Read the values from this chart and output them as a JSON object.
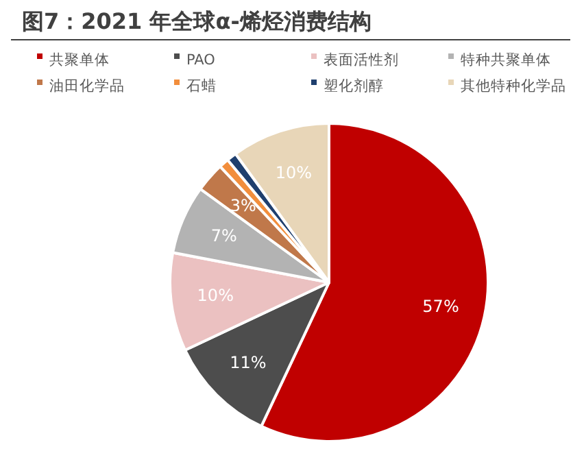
{
  "chart_data": {
    "type": "pie",
    "title": "图7：2021 年全球α-烯烃消费结构",
    "categories": [
      "共聚单体",
      "PAO",
      "表面活性剂",
      "特种共聚单体",
      "油田化学品",
      "石蜡",
      "塑化剂醇",
      "其他特种化学品"
    ],
    "values": [
      57,
      11,
      10,
      7,
      3,
      1,
      1,
      10
    ],
    "colors": [
      "#c00000",
      "#4d4d4d",
      "#ebc1c1",
      "#b3b3b3",
      "#c0784a",
      "#f28e3c",
      "#1f3f6e",
      "#e8d6b8"
    ],
    "value_labels": [
      "57%",
      "11%",
      "10%",
      "7%",
      "3%",
      null,
      null,
      "10%"
    ],
    "legend": "top"
  }
}
